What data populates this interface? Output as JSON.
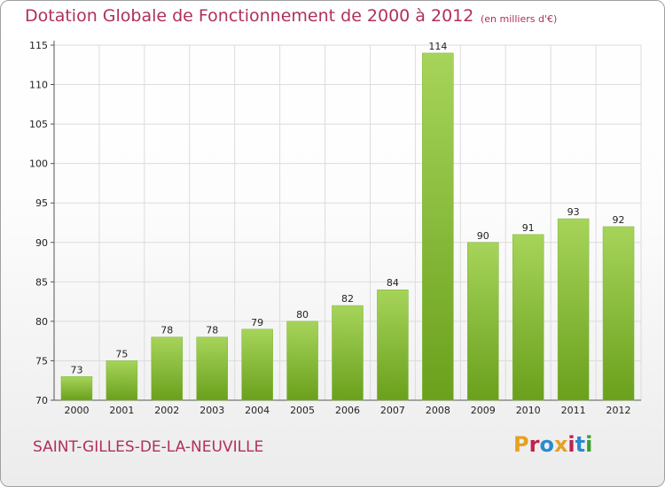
{
  "header": {
    "title": "Dotation Globale de Fonctionnement de 2000 à 2012",
    "subtitle": "(en milliers d'€)"
  },
  "footer": {
    "commune": "SAINT-GILLES-DE-LA-NEUVILLE",
    "logo": "Proxiti"
  },
  "colors": {
    "title": "#b0305a",
    "bar_light": "#a6d45a",
    "bar_dark": "#6aa01c",
    "grid": "#dcdcdc",
    "logo_letters": [
      "#e8a020",
      "#c02050",
      "#2a8ad0",
      "#e8a020",
      "#c02050",
      "#2a8ad0",
      "#3aa030"
    ]
  },
  "chart_data": {
    "type": "bar",
    "title": "Dotation Globale de Fonctionnement de 2000 à 2012",
    "subtitle": "(en milliers d'€)",
    "xlabel": "",
    "ylabel": "",
    "categories": [
      "2000",
      "2001",
      "2002",
      "2003",
      "2004",
      "2005",
      "2006",
      "2007",
      "2008",
      "2009",
      "2010",
      "2011",
      "2012"
    ],
    "values": [
      73,
      75,
      78,
      78,
      79,
      80,
      82,
      84,
      114,
      90,
      91,
      93,
      92
    ],
    "ylim": [
      70,
      115
    ],
    "yticks": [
      "70",
      "75",
      "80",
      "85",
      "90",
      "95",
      "100",
      "105",
      "110",
      "115"
    ],
    "grid": true,
    "legend": "none"
  }
}
